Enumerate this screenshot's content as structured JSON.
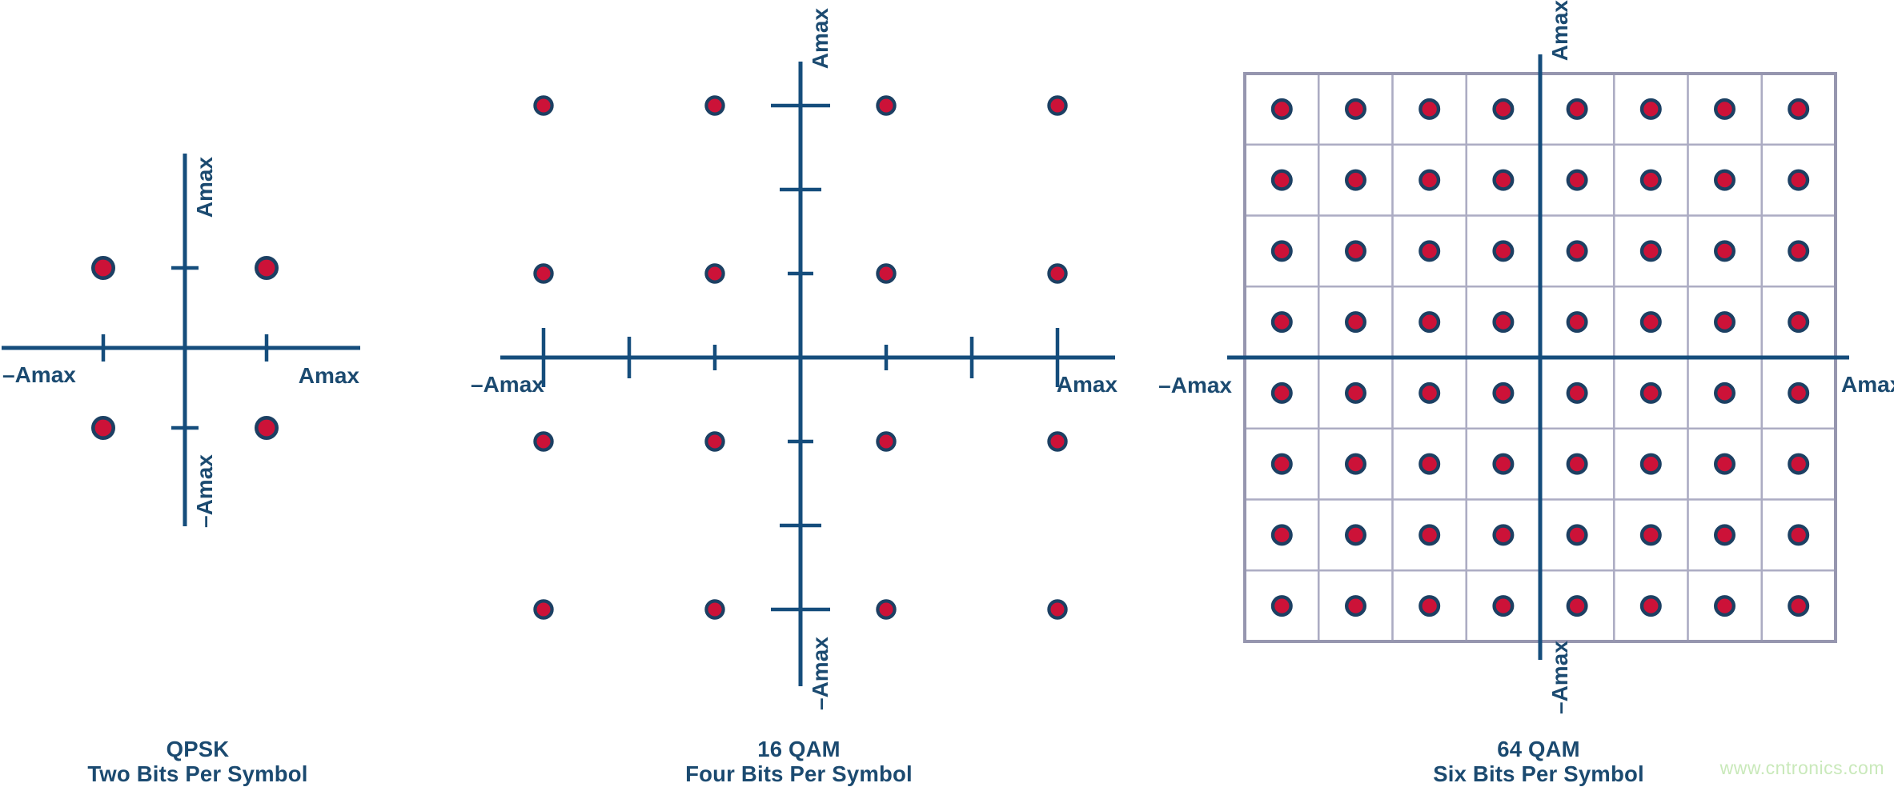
{
  "figure": {
    "description": "Constellation diagrams for QPSK, 16 QAM and 64 QAM modulation"
  },
  "colors": {
    "axis_navy": "#154d7c",
    "text_navy": "#1b4a70",
    "dot_red": "#cc1238",
    "dot_ring_navy": "#1c4063",
    "grid_line": "#acacc3",
    "grid_border": "#9696af",
    "background": "#ffffff",
    "watermark_green": "#c9e9ba"
  },
  "watermark": {
    "text": "www.cntronics.com"
  },
  "panels": [
    {
      "id": "qpsk",
      "caption_line1": "QPSK",
      "caption_line2": "Two Bits Per Symbol",
      "axis_labels": {
        "x_negative": "–Amax",
        "x_positive": "Amax",
        "y_positive": "Amax",
        "y_negative": "–Amax"
      },
      "constellation": {
        "type": "scatter",
        "points_per_axis": 2,
        "total_points": 4,
        "x_levels": [
          -1,
          1
        ],
        "y_levels": [
          -1,
          1
        ]
      },
      "ticks": {
        "x": [
          -1,
          1
        ],
        "y": [
          -1,
          1
        ]
      },
      "grid": false
    },
    {
      "id": "16qam",
      "caption_line1": "16 QAM",
      "caption_line2": "Four Bits Per Symbol",
      "axis_labels": {
        "x_negative": "–Amax",
        "x_positive": "Amax",
        "y_positive": "Amax",
        "y_negative": "–Amax"
      },
      "constellation": {
        "type": "scatter",
        "points_per_axis": 4,
        "total_points": 16,
        "x_levels": [
          -3,
          -1,
          1,
          3
        ],
        "y_levels": [
          -3,
          -1,
          1,
          3
        ]
      },
      "ticks": {
        "x": [
          -3,
          -2,
          -1,
          1,
          2,
          3
        ],
        "y": [
          -3,
          -2,
          -1,
          1,
          2,
          3
        ]
      },
      "grid": false
    },
    {
      "id": "64qam",
      "caption_line1": "64 QAM",
      "caption_line2": "Six Bits Per Symbol",
      "axis_labels": {
        "x_negative": "–Amax",
        "x_positive": "Amax",
        "y_positive": "Amax",
        "y_negative": "–Amax"
      },
      "constellation": {
        "type": "scatter",
        "points_per_axis": 8,
        "total_points": 64,
        "x_levels": [
          -3.5,
          -2.5,
          -1.5,
          -0.5,
          0.5,
          1.5,
          2.5,
          3.5
        ],
        "y_levels": [
          -3.5,
          -2.5,
          -1.5,
          -0.5,
          0.5,
          1.5,
          2.5,
          3.5
        ]
      },
      "ticks": {
        "x": [],
        "y": []
      },
      "grid": true,
      "grid_cells": {
        "columns": 8,
        "rows": 8
      }
    }
  ]
}
